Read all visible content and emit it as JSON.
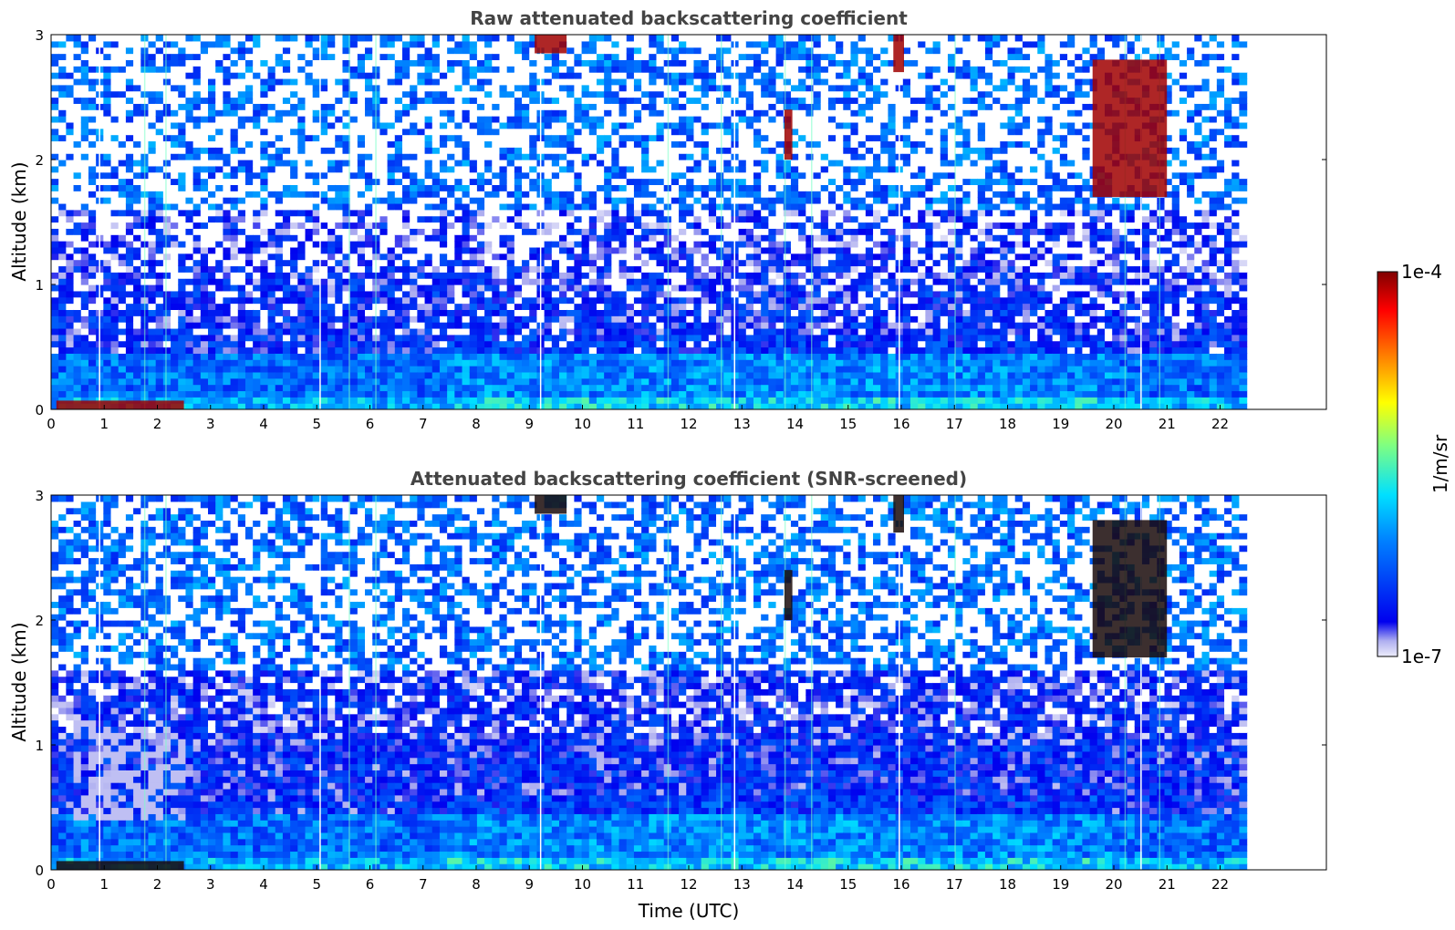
{
  "chart_data": [
    {
      "type": "heatmap",
      "title": "Raw attenuated backscattering coefficient",
      "xlabel": "",
      "ylabel": "Altitude (km)",
      "xlim": [
        0,
        24
      ],
      "ylim": [
        0,
        3
      ],
      "x_ticks": [
        "0",
        "1",
        "2",
        "3",
        "4",
        "5",
        "6",
        "7",
        "8",
        "9",
        "10",
        "11",
        "12",
        "13",
        "14",
        "15",
        "16",
        "17",
        "18",
        "19",
        "20",
        "21",
        "22"
      ],
      "y_ticks": [
        "0",
        "1",
        "2",
        "3"
      ],
      "data_end_time": 22.5,
      "screened": false,
      "colorscale": "jet",
      "vertical_streaks": [
        0.9,
        1.75,
        2.15,
        5.05,
        5.6,
        6.1,
        9.2,
        11.6,
        12.6,
        12.85,
        13.8,
        14.3,
        15.95,
        17.0,
        20.2,
        20.5,
        20.85
      ],
      "high_backscatter_regions": [
        {
          "time": [
            0.1,
            2.5
          ],
          "altitude": [
            0.0,
            0.07
          ],
          "level": "1e-4"
        },
        {
          "time": [
            9.1,
            9.7
          ],
          "altitude": [
            2.85,
            3.0
          ],
          "level": "1e-4"
        },
        {
          "time": [
            13.8,
            13.95
          ],
          "altitude": [
            2.0,
            2.4
          ],
          "level": "1e-4"
        },
        {
          "time": [
            15.85,
            16.05
          ],
          "altitude": [
            2.7,
            3.0
          ],
          "level": "1e-4"
        },
        {
          "time": [
            19.6,
            21.0
          ],
          "altitude": [
            1.7,
            2.8
          ],
          "level": "1e-4"
        }
      ]
    },
    {
      "type": "heatmap",
      "title": "Attenuated backscattering coefficient (SNR-screened)",
      "xlabel": "Time (UTC)",
      "ylabel": "Altitude (km)",
      "xlim": [
        0,
        24
      ],
      "ylim": [
        0,
        3
      ],
      "x_ticks": [
        "0",
        "1",
        "2",
        "3",
        "4",
        "5",
        "6",
        "7",
        "8",
        "9",
        "10",
        "11",
        "12",
        "13",
        "14",
        "15",
        "16",
        "17",
        "18",
        "19",
        "20",
        "21",
        "22"
      ],
      "y_ticks": [
        "0",
        "1",
        "2",
        "3"
      ],
      "data_end_time": 22.5,
      "screened": true,
      "colorscale": "jet",
      "high_backscatter_regions": [
        {
          "time": [
            0.1,
            2.5
          ],
          "altitude": [
            0.0,
            0.07
          ],
          "level": "1e-4"
        },
        {
          "time": [
            9.1,
            9.7
          ],
          "altitude": [
            2.85,
            3.0
          ],
          "level": "1e-4"
        },
        {
          "time": [
            13.8,
            13.95
          ],
          "altitude": [
            2.0,
            2.4
          ],
          "level": "1e-4"
        },
        {
          "time": [
            15.85,
            16.05
          ],
          "altitude": [
            2.7,
            3.0
          ],
          "level": "1e-4"
        },
        {
          "time": [
            19.6,
            21.0
          ],
          "altitude": [
            1.7,
            2.8
          ],
          "level": "1e-4"
        }
      ]
    }
  ],
  "colorbar": {
    "label": "1/m/sr",
    "max_label": "1e-4",
    "min_label": "1e-7",
    "colors": [
      "#e6e6f8",
      "#0000ee",
      "#0080ff",
      "#00e0ff",
      "#80ff80",
      "#ffff00",
      "#ff8000",
      "#ff0000",
      "#800000"
    ]
  }
}
